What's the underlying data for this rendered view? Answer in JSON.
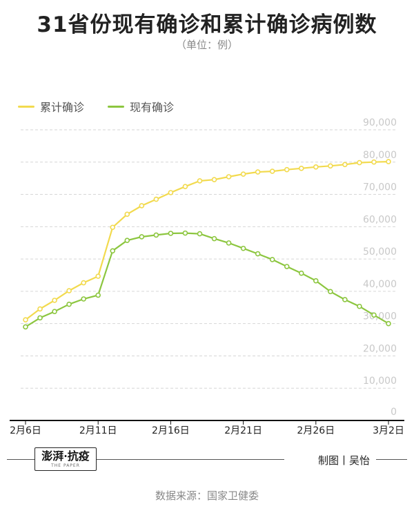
{
  "title": "31省份现有确诊和累计确诊病例数",
  "subtitle": "（单位：例）",
  "legend": [
    {
      "label": "累计确诊",
      "color": "#f2da4e"
    },
    {
      "label": "现有确诊",
      "color": "#8cc63f"
    }
  ],
  "chart_data": {
    "type": "line",
    "x": [
      "2月6日",
      "2月7日",
      "2月8日",
      "2月9日",
      "2月10日",
      "2月11日",
      "2月12日",
      "2月13日",
      "2月14日",
      "2月15日",
      "2月16日",
      "2月17日",
      "2月18日",
      "2月19日",
      "2月20日",
      "2月21日",
      "2月22日",
      "2月23日",
      "2月24日",
      "2月25日",
      "2月26日",
      "2月27日",
      "2月28日",
      "2月29日",
      "3月1日",
      "3月2日"
    ],
    "series": [
      {
        "name": "累计确诊",
        "color": "#f2da4e",
        "values": [
          31161,
          34546,
          37198,
          40171,
          42638,
          44653,
          59804,
          63851,
          66492,
          68500,
          70548,
          72436,
          74185,
          74576,
          75465,
          76288,
          76936,
          77150,
          77658,
          78064,
          78497,
          78824,
          79251,
          79824,
          80026,
          80151
        ]
      },
      {
        "name": "现有确诊",
        "color": "#8cc63f",
        "values": [
          28985,
          31774,
          33738,
          35982,
          37626,
          38800,
          52526,
          55748,
          56873,
          57416,
          57934,
          58016,
          57805,
          56303,
          54965,
          53284,
          51606,
          49824,
          47672,
          45604,
          43258,
          39919,
          37414,
          35329,
          32652,
          30004
        ]
      }
    ],
    "x_ticks": [
      "2月6日",
      "2月11日",
      "2月16日",
      "2月21日",
      "2月26日",
      "3月2日"
    ],
    "y_ticks": [
      "0",
      "10,000",
      "20,000",
      "30,000",
      "40,000",
      "50,000",
      "60,000",
      "70,000",
      "80,000",
      "90,000"
    ],
    "ylim": [
      0,
      90000
    ],
    "grid": true,
    "legend_position": "top-left"
  },
  "footer": {
    "logo_text": "澎湃·抗疫",
    "logo_sub": "THE PAPER",
    "credit": "制图丨吴怡",
    "source": "数据来源：国家卫健委"
  }
}
